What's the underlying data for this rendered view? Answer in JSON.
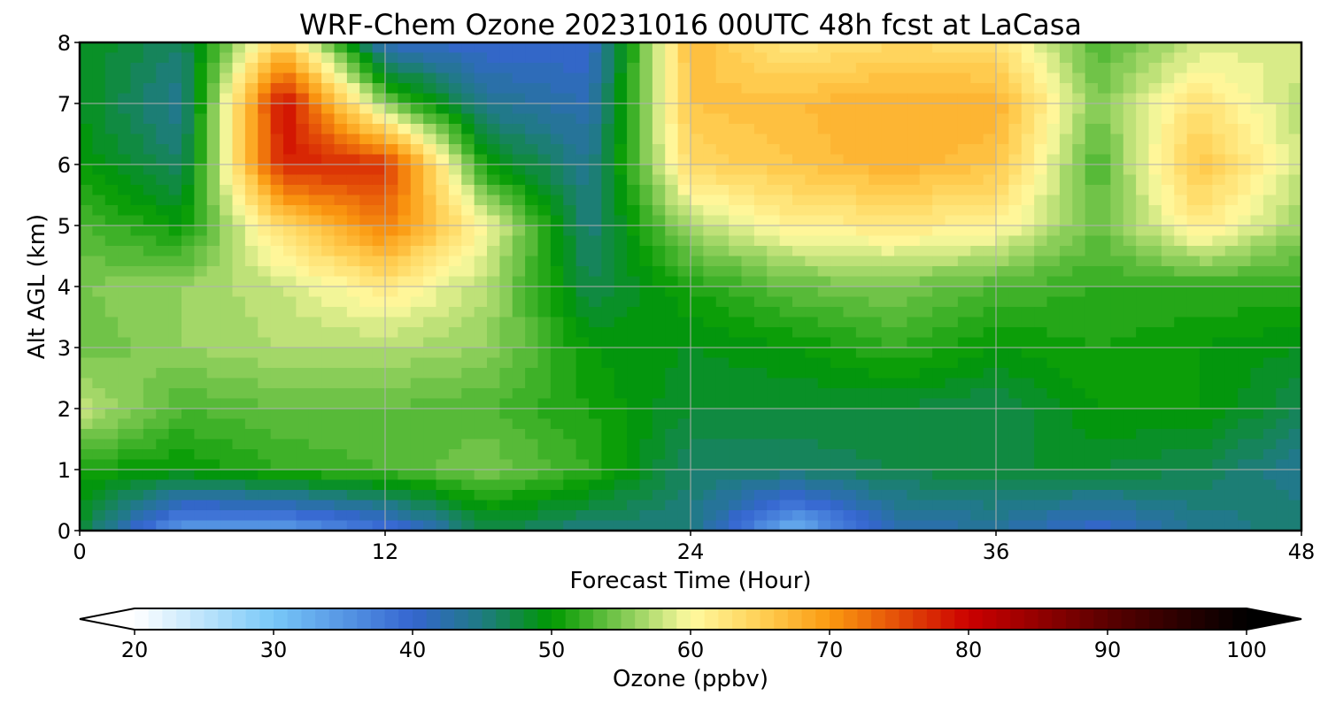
{
  "chart_data": {
    "type": "heatmap",
    "title": "WRF-Chem Ozone  20231016 00UTC 48h fcst at LaCasa",
    "xlabel": "Forecast Time (Hour)",
    "ylabel": "Alt AGL (km)",
    "x_ticks": [
      0,
      12,
      24,
      36,
      48
    ],
    "y_ticks": [
      0,
      1,
      2,
      3,
      4,
      5,
      6,
      7,
      8
    ],
    "xlim": [
      0,
      48
    ],
    "ylim": [
      0,
      8
    ],
    "grid": true,
    "hours": [
      0,
      4,
      8,
      12,
      16,
      20,
      24,
      28,
      32,
      36,
      40,
      44,
      48
    ],
    "altitudes_km": [
      0,
      1,
      2,
      3,
      4,
      5,
      6,
      7,
      8
    ],
    "ozone_ppbv": [
      [
        48,
        34,
        34,
        38,
        47,
        45,
        45,
        32,
        42,
        43,
        40,
        44,
        46
      ],
      [
        51,
        50,
        52,
        53,
        55,
        52,
        46,
        46,
        47,
        48,
        48,
        47,
        44
      ],
      [
        58,
        53,
        54,
        54,
        53,
        51,
        48,
        48,
        48,
        47,
        50,
        50,
        47
      ],
      [
        54,
        56,
        57,
        57,
        56,
        50,
        49,
        50,
        52,
        50,
        51,
        50,
        49
      ],
      [
        55,
        56,
        58,
        62,
        57,
        47,
        51,
        54,
        55,
        53,
        52,
        52,
        52
      ],
      [
        53,
        50,
        64,
        72,
        60,
        45,
        57,
        61,
        62,
        61,
        54,
        62,
        56
      ],
      [
        50,
        46,
        78,
        77,
        50,
        44,
        64,
        66,
        68,
        66,
        53,
        66,
        58
      ],
      [
        49,
        44,
        80,
        55,
        44,
        42,
        66,
        67,
        68,
        68,
        55,
        63,
        57
      ],
      [
        49,
        46,
        65,
        41,
        40,
        40,
        67,
        62,
        64,
        63,
        53,
        58,
        59
      ]
    ],
    "colorbar": {
      "label": "Ozone  (ppbv)",
      "min": 20,
      "max": 100,
      "step": 1,
      "ticks": [
        20,
        30,
        40,
        50,
        60,
        70,
        80,
        90,
        100
      ],
      "extend": "both",
      "colors": [
        {
          "v": 20,
          "c": "#ffffff"
        },
        {
          "v": 30,
          "c": "#78c8f8"
        },
        {
          "v": 40,
          "c": "#3565d0"
        },
        {
          "v": 45,
          "c": "#1f7b82"
        },
        {
          "v": 50,
          "c": "#009900"
        },
        {
          "v": 55,
          "c": "#7cc850"
        },
        {
          "v": 60,
          "c": "#fffaa0"
        },
        {
          "v": 65,
          "c": "#ffd055"
        },
        {
          "v": 70,
          "c": "#fb9a10"
        },
        {
          "v": 80,
          "c": "#cc0000"
        },
        {
          "v": 90,
          "c": "#5a0000"
        },
        {
          "v": 100,
          "c": "#000000"
        }
      ]
    }
  }
}
